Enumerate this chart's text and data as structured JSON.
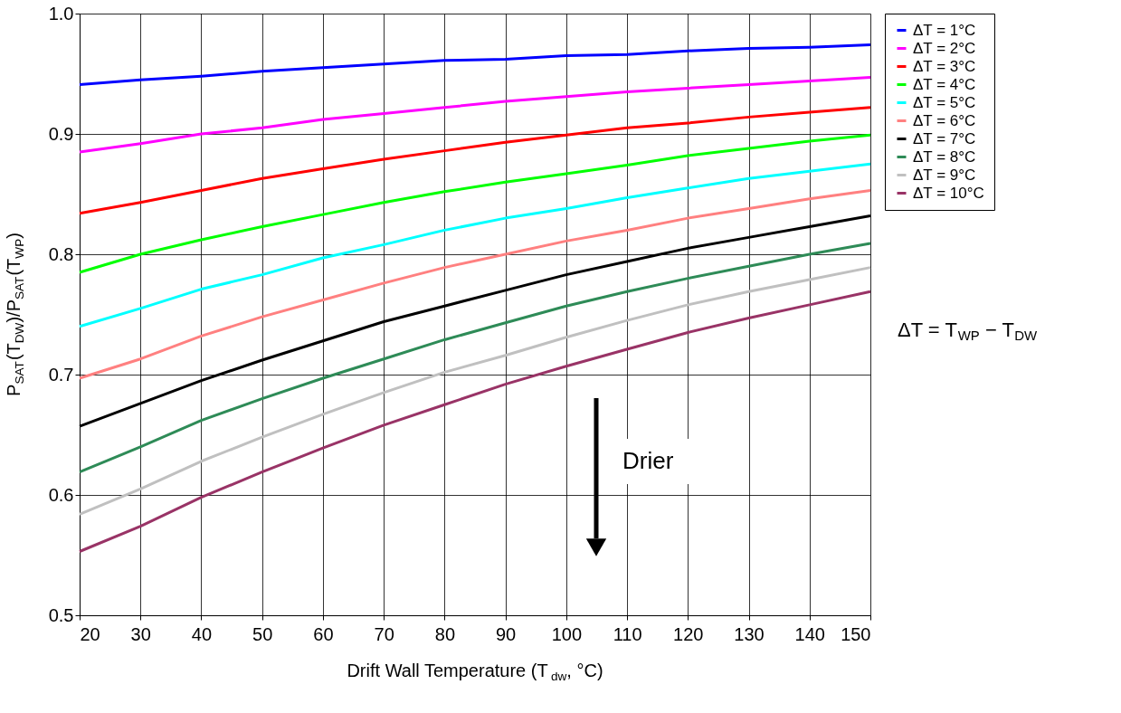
{
  "chart_data": {
    "type": "line",
    "xlabel": "Drift Wall Temperature (T$_{dw}$, °C)",
    "ylabel": "P$_{SAT}$(T$_{DW}$)/P$_{SAT}$(T$_{WP}$)",
    "x": [
      20,
      30,
      40,
      50,
      60,
      70,
      80,
      90,
      100,
      110,
      120,
      130,
      140,
      150
    ],
    "xlim": [
      20,
      150
    ],
    "xticks": [
      20,
      30,
      40,
      50,
      60,
      70,
      80,
      90,
      100,
      110,
      120,
      130,
      140,
      150
    ],
    "ylim": [
      0.5,
      1.0
    ],
    "yticks": [
      0.5,
      0.6,
      0.7,
      0.8,
      0.9,
      {
        "value": 1.0,
        "label": "1.0"
      }
    ],
    "grid": true,
    "legend": "right",
    "marker": "none",
    "line_style": "solid",
    "annotations": [
      "ΔT = T$_{WP}$ − T$_{DW}$",
      "Drier"
    ],
    "series": [
      {
        "name": "ΔT = 1°C",
        "color": "#0000ff",
        "values": [
          0.941,
          0.945,
          0.948,
          0.952,
          0.955,
          0.958,
          0.961,
          0.962,
          0.965,
          0.966,
          0.969,
          0.971,
          0.972,
          0.974
        ]
      },
      {
        "name": "ΔT = 2°C",
        "color": "#ff00ff",
        "values": [
          0.885,
          0.892,
          0.9,
          0.905,
          0.912,
          0.917,
          0.922,
          0.927,
          0.931,
          0.935,
          0.938,
          0.941,
          0.944,
          0.947
        ]
      },
      {
        "name": "ΔT = 3°C",
        "color": "#ff0000",
        "values": [
          0.834,
          0.843,
          0.853,
          0.863,
          0.871,
          0.879,
          0.886,
          0.893,
          0.899,
          0.905,
          0.909,
          0.914,
          0.918,
          0.922
        ]
      },
      {
        "name": "ΔT = 4°C",
        "color": "#00ff00",
        "values": [
          0.785,
          0.8,
          0.812,
          0.823,
          0.833,
          0.843,
          0.852,
          0.86,
          0.867,
          0.874,
          0.882,
          0.888,
          0.894,
          0.899
        ]
      },
      {
        "name": "ΔT = 5°C",
        "color": "#00ffff",
        "values": [
          0.74,
          0.755,
          0.771,
          0.783,
          0.797,
          0.808,
          0.82,
          0.83,
          0.838,
          0.847,
          0.855,
          0.863,
          0.869,
          0.875
        ]
      },
      {
        "name": "ΔT = 6°C",
        "color": "#ff8080",
        "values": [
          0.697,
          0.713,
          0.732,
          0.748,
          0.762,
          0.776,
          0.789,
          0.8,
          0.811,
          0.82,
          0.83,
          0.838,
          0.846,
          0.853
        ]
      },
      {
        "name": "ΔT = 7°C",
        "color": "#000000",
        "values": [
          0.657,
          0.676,
          0.695,
          0.712,
          0.728,
          0.744,
          0.757,
          0.77,
          0.783,
          0.794,
          0.805,
          0.814,
          0.823,
          0.832
        ]
      },
      {
        "name": "ΔT = 8°C",
        "color": "#2e8b57",
        "values": [
          0.619,
          0.64,
          0.662,
          0.68,
          0.697,
          0.713,
          0.729,
          0.743,
          0.757,
          0.769,
          0.78,
          0.79,
          0.8,
          0.809
        ]
      },
      {
        "name": "ΔT = 9°C",
        "color": "#c0c0c0",
        "values": [
          0.584,
          0.605,
          0.628,
          0.648,
          0.667,
          0.685,
          0.702,
          0.716,
          0.731,
          0.745,
          0.758,
          0.769,
          0.779,
          0.789
        ]
      },
      {
        "name": "ΔT = 10°C",
        "color": "#993366",
        "values": [
          0.553,
          0.574,
          0.598,
          0.619,
          0.639,
          0.658,
          0.675,
          0.692,
          0.707,
          0.721,
          0.735,
          0.747,
          0.758,
          0.769
        ]
      }
    ]
  }
}
